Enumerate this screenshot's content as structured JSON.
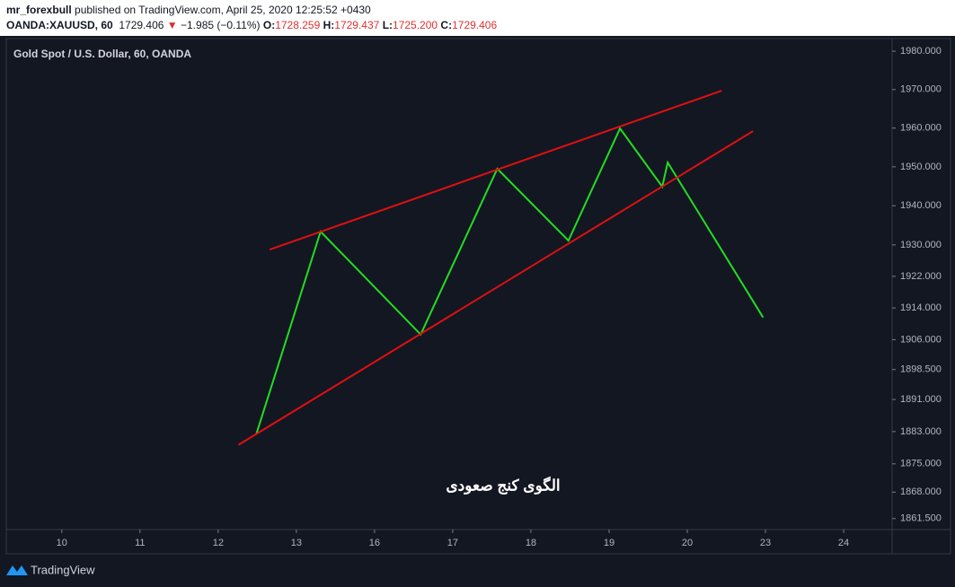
{
  "header": {
    "author": "mr_forexbull",
    "published": "published on TradingView.com, April 25, 2020 12:25:52 +0430",
    "symbol": "OANDA:XAUUSD, 60",
    "last": "1729.406",
    "arrow": "▼",
    "change": "−1.985 (−0.11%)",
    "ohlc": [
      {
        "label": "O:",
        "value": "1728.259"
      },
      {
        "label": "H:",
        "value": "1729.437"
      },
      {
        "label": "L:",
        "value": "1725.200"
      },
      {
        "label": "C:",
        "value": "1729.406"
      }
    ]
  },
  "footer": {
    "brand": "TradingView"
  },
  "chart_data": {
    "type": "line",
    "title": "Gold Spot / U.S. Dollar, 60, OANDA",
    "annotation": "الگوی کنج صعودی",
    "yscale": "log",
    "ylim": [
      1858.8,
      1983.3
    ],
    "xlim": [
      -0.71,
      10.62
    ],
    "yticks": [
      {
        "value": 1980,
        "label": "1980.000"
      },
      {
        "value": 1970,
        "label": "1970.000"
      },
      {
        "value": 1960,
        "label": "1960.000"
      },
      {
        "value": 1950,
        "label": "1950.000"
      },
      {
        "value": 1940,
        "label": "1940.000"
      },
      {
        "value": 1930,
        "label": "1930.000"
      },
      {
        "value": 1922,
        "label": "1922.000"
      },
      {
        "value": 1914,
        "label": "1914.000"
      },
      {
        "value": 1906,
        "label": "1906.000"
      },
      {
        "value": 1898.5,
        "label": "1898.500"
      },
      {
        "value": 1891,
        "label": "1891.000"
      },
      {
        "value": 1883,
        "label": "1883.000"
      },
      {
        "value": 1875,
        "label": "1875.000"
      },
      {
        "value": 1868,
        "label": "1868.000"
      },
      {
        "value": 1861.5,
        "label": "1861.500"
      }
    ],
    "xticks": [
      {
        "value": 0,
        "label": "10"
      },
      {
        "value": 1,
        "label": "11"
      },
      {
        "value": 2,
        "label": "12"
      },
      {
        "value": 3,
        "label": "13"
      },
      {
        "value": 4,
        "label": "16"
      },
      {
        "value": 5,
        "label": "17"
      },
      {
        "value": 6,
        "label": "18"
      },
      {
        "value": 7,
        "label": "19"
      },
      {
        "value": 8,
        "label": "20"
      },
      {
        "value": 9,
        "label": "23"
      },
      {
        "value": 10,
        "label": "24"
      }
    ],
    "series": [
      {
        "color": "#22dd22",
        "x": [
          2.49,
          3.31,
          4.59,
          5.57,
          6.48,
          7.14,
          7.68,
          7.75,
          8.97
        ],
        "values": [
          1882.5,
          1933.4,
          1907.3,
          1949.5,
          1931.1,
          1959.9,
          1944.9,
          1951.1,
          1911.6
        ]
      },
      {
        "color": "#e01010",
        "x": [
          2.66,
          8.44
        ],
        "values": [
          1928.8,
          1969.7
        ]
      },
      {
        "color": "#e01010",
        "x": [
          2.26,
          8.84
        ],
        "values": [
          1879.7,
          1959.2
        ]
      }
    ]
  }
}
